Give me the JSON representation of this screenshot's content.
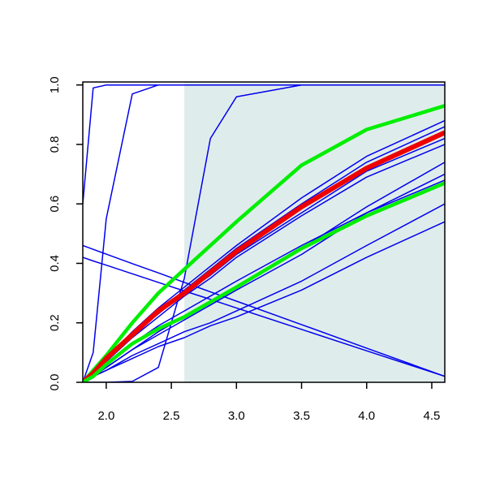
{
  "chart_data": {
    "type": "line",
    "x": [
      1.82,
      1.9,
      2.0,
      2.2,
      2.4,
      2.6,
      2.8,
      3.0,
      3.5,
      4.0,
      4.6
    ],
    "series": [
      {
        "color": "#0000ee",
        "line_width": 1.5,
        "values": [
          0.6,
          0.99,
          1,
          1,
          1,
          1,
          1,
          1,
          1,
          1,
          1
        ]
      },
      {
        "color": "#0000ee",
        "line_width": 1.5,
        "values": [
          0,
          0.1,
          0.55,
          0.97,
          1,
          1,
          1,
          1,
          1,
          1,
          1
        ]
      },
      {
        "color": "#0000ee",
        "line_width": 1.5,
        "values": [
          0,
          0,
          0,
          0.003,
          0.05,
          0.35,
          0.82,
          0.96,
          1,
          1,
          1
        ]
      },
      {
        "color": "#0000ee",
        "line_width": 1.5,
        "values": [
          0.46,
          0.447,
          0.431,
          0.399,
          0.368,
          0.336,
          0.304,
          0.273,
          0.194,
          0.115,
          0.02
        ]
      },
      {
        "color": "#0000ee",
        "line_width": 1.5,
        "values": [
          0.42,
          0.408,
          0.394,
          0.365,
          0.336,
          0.307,
          0.279,
          0.25,
          0.178,
          0.106,
          0.02
        ]
      },
      {
        "color": "#0000ee",
        "line_width": 1.5,
        "values": [
          0,
          0.04,
          0.08,
          0.17,
          0.25,
          0.32,
          0.39,
          0.46,
          0.62,
          0.76,
          0.88
        ]
      },
      {
        "color": "#0000ee",
        "line_width": 1.5,
        "values": [
          0,
          0.03,
          0.08,
          0.16,
          0.24,
          0.31,
          0.38,
          0.45,
          0.6,
          0.74,
          0.86
        ]
      },
      {
        "color": "#0000ee",
        "line_width": 1.5,
        "values": [
          0,
          0.03,
          0.07,
          0.16,
          0.23,
          0.3,
          0.36,
          0.43,
          0.57,
          0.71,
          0.82
        ]
      },
      {
        "color": "#0000ee",
        "line_width": 1.5,
        "values": [
          0,
          0.03,
          0.07,
          0.15,
          0.22,
          0.29,
          0.35,
          0.42,
          0.56,
          0.69,
          0.8
        ]
      },
      {
        "color": "#0000ee",
        "line_width": 1.5,
        "values": [
          0,
          0.02,
          0.05,
          0.11,
          0.17,
          0.22,
          0.27,
          0.32,
          0.45,
          0.59,
          0.74
        ]
      },
      {
        "color": "#0000ee",
        "line_width": 1.5,
        "values": [
          0,
          0.02,
          0.05,
          0.11,
          0.16,
          0.21,
          0.26,
          0.31,
          0.43,
          0.57,
          0.7
        ]
      },
      {
        "color": "#0000ee",
        "line_width": 1.5,
        "values": [
          0,
          0.03,
          0.06,
          0.13,
          0.19,
          0.24,
          0.29,
          0.34,
          0.46,
          0.57,
          0.68
        ]
      },
      {
        "color": "#0000ee",
        "line_width": 1.5,
        "values": [
          0,
          0.02,
          0.04,
          0.09,
          0.13,
          0.17,
          0.2,
          0.24,
          0.34,
          0.46,
          0.6
        ]
      },
      {
        "color": "#0000ee",
        "line_width": 1.5,
        "values": [
          0,
          0.02,
          0.04,
          0.08,
          0.12,
          0.15,
          0.19,
          0.22,
          0.31,
          0.42,
          0.54
        ]
      },
      {
        "color": "#00ee00",
        "line_width": 4.5,
        "values": [
          0,
          0.04,
          0.09,
          0.2,
          0.3,
          0.38,
          0.46,
          0.54,
          0.73,
          0.85,
          0.93
        ]
      },
      {
        "color": "#ee0000",
        "line_width": 6,
        "values": [
          0,
          0.03,
          0.08,
          0.16,
          0.24,
          0.3,
          0.37,
          0.44,
          0.59,
          0.72,
          0.84
        ]
      },
      {
        "color": "#00ee00",
        "line_width": 4.5,
        "values": [
          0,
          0.02,
          0.06,
          0.13,
          0.18,
          0.22,
          0.27,
          0.32,
          0.45,
          0.56,
          0.67
        ]
      }
    ],
    "xlim": [
      1.82,
      4.6
    ],
    "ylim": [
      0,
      1.01
    ],
    "xticks": [
      {
        "value": 2.0,
        "label": "2.0"
      },
      {
        "value": 2.5,
        "label": "2.5"
      },
      {
        "value": 3.0,
        "label": "3.0"
      },
      {
        "value": 3.5,
        "label": "3.5"
      },
      {
        "value": 4.0,
        "label": "4.0"
      },
      {
        "value": 4.5,
        "label": "4.5"
      }
    ],
    "yticks": [
      {
        "value": 0.0,
        "label": "0.0"
      },
      {
        "value": 0.2,
        "label": "0.2"
      },
      {
        "value": 0.4,
        "label": "0.4"
      },
      {
        "value": 0.6,
        "label": "0.6"
      },
      {
        "value": 0.8,
        "label": "0.8"
      },
      {
        "value": 1.0,
        "label": "1.0"
      }
    ],
    "highlight_from": 2.6,
    "highlight_color": "#dfecec",
    "grid": false
  }
}
